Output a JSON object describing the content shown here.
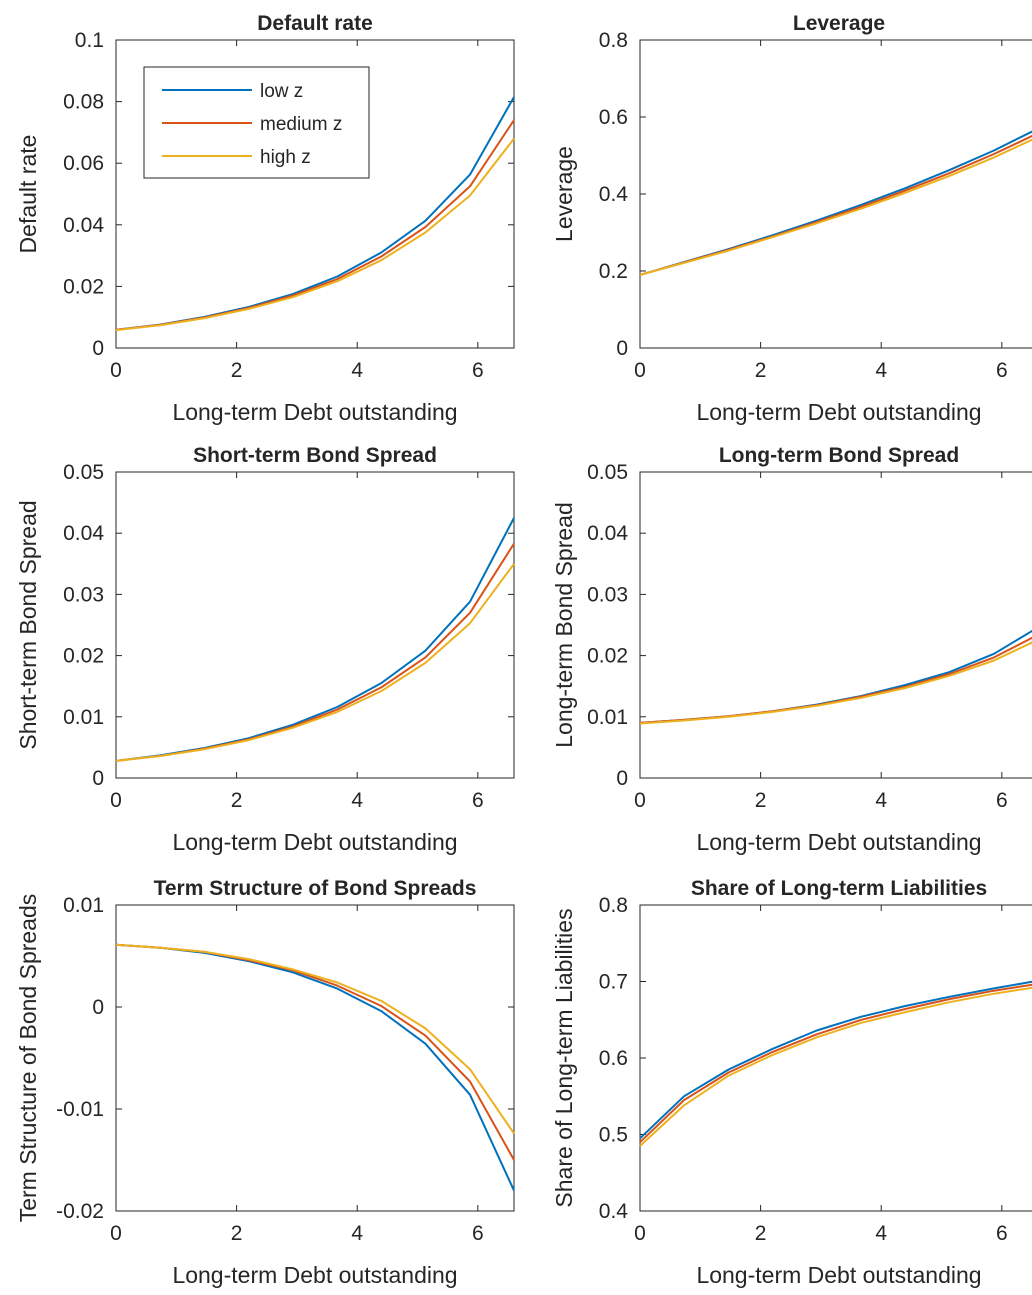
{
  "legend": {
    "entries": [
      {
        "label": "low z",
        "color": "#0072BD"
      },
      {
        "label": "medium z",
        "color": "#D95319"
      },
      {
        "label": "high z",
        "color": "#EDB120"
      }
    ],
    "placement": "upper-left of first panel"
  },
  "chart_data": [
    {
      "type": "line",
      "title": "Default rate",
      "xlabel": "Long-term Debt outstanding",
      "ylabel": "Default rate",
      "xlim": [
        0,
        6.6
      ],
      "ylim": [
        0,
        0.1
      ],
      "xticks": [
        "0",
        "2",
        "4",
        "6"
      ],
      "yticks": [
        "0",
        "0.02",
        "0.04",
        "0.06",
        "0.08",
        "0.1"
      ],
      "grid": false,
      "x": [
        0,
        0.73,
        1.47,
        2.2,
        2.93,
        3.67,
        4.4,
        5.13,
        5.87,
        6.6
      ],
      "series": [
        {
          "name": "low z",
          "values": [
            0.0059,
            0.0076,
            0.0101,
            0.0133,
            0.0175,
            0.0232,
            0.031,
            0.0413,
            0.0563,
            0.0815
          ]
        },
        {
          "name": "medium z",
          "values": [
            0.0059,
            0.0075,
            0.0099,
            0.013,
            0.017,
            0.0224,
            0.0297,
            0.0393,
            0.0525,
            0.074
          ]
        },
        {
          "name": "high z",
          "values": [
            0.0058,
            0.0074,
            0.0097,
            0.0127,
            0.0165,
            0.0217,
            0.0285,
            0.0375,
            0.0495,
            0.068
          ]
        }
      ]
    },
    {
      "type": "line",
      "title": "Leverage",
      "xlabel": "Long-term Debt outstanding",
      "ylabel": "Leverage",
      "xlim": [
        0,
        6.6
      ],
      "ylim": [
        0,
        0.8
      ],
      "xticks": [
        "0",
        "2",
        "4",
        "6"
      ],
      "yticks": [
        "0",
        "0.2",
        "0.4",
        "0.6",
        "0.8"
      ],
      "grid": false,
      "x": [
        0,
        0.73,
        1.47,
        2.2,
        2.93,
        3.67,
        4.4,
        5.13,
        5.87,
        6.6
      ],
      "series": [
        {
          "name": "low z",
          "values": [
            0.19,
            0.223,
            0.257,
            0.293,
            0.331,
            0.372,
            0.415,
            0.462,
            0.513,
            0.57
          ]
        },
        {
          "name": "medium z",
          "values": [
            0.19,
            0.222,
            0.255,
            0.29,
            0.327,
            0.367,
            0.409,
            0.454,
            0.504,
            0.558
          ]
        },
        {
          "name": "high z",
          "values": [
            0.19,
            0.221,
            0.253,
            0.288,
            0.324,
            0.362,
            0.403,
            0.447,
            0.495,
            0.548
          ]
        }
      ]
    },
    {
      "type": "line",
      "title": "Short-term Bond Spread",
      "xlabel": "Long-term Debt outstanding",
      "ylabel": "Short-term Bond Spread",
      "xlim": [
        0,
        6.6
      ],
      "ylim": [
        0,
        0.05
      ],
      "xticks": [
        "0",
        "2",
        "4",
        "6"
      ],
      "yticks": [
        "0",
        "0.01",
        "0.02",
        "0.03",
        "0.04",
        "0.05"
      ],
      "grid": false,
      "x": [
        0,
        0.73,
        1.47,
        2.2,
        2.93,
        3.67,
        4.4,
        5.13,
        5.87,
        6.6
      ],
      "series": [
        {
          "name": "low z",
          "values": [
            0.0028,
            0.0037,
            0.0049,
            0.0065,
            0.0087,
            0.0116,
            0.0155,
            0.0208,
            0.0288,
            0.0425
          ]
        },
        {
          "name": "medium z",
          "values": [
            0.0028,
            0.0036,
            0.0048,
            0.0063,
            0.0084,
            0.0112,
            0.0148,
            0.0197,
            0.027,
            0.0383
          ]
        },
        {
          "name": "high z",
          "values": [
            0.0028,
            0.0036,
            0.0047,
            0.0062,
            0.0082,
            0.0108,
            0.0142,
            0.0188,
            0.0253,
            0.035
          ]
        }
      ]
    },
    {
      "type": "line",
      "title": "Long-term Bond Spread",
      "xlabel": "Long-term Debt outstanding",
      "ylabel": "Long-term Bond Spread",
      "xlim": [
        0,
        6.6
      ],
      "ylim": [
        0,
        0.05
      ],
      "xticks": [
        "0",
        "2",
        "4",
        "6"
      ],
      "yticks": [
        "0",
        "0.01",
        "0.02",
        "0.03",
        "0.04",
        "0.05"
      ],
      "grid": false,
      "x": [
        0,
        0.73,
        1.47,
        2.2,
        2.93,
        3.67,
        4.4,
        5.13,
        5.87,
        6.6
      ],
      "series": [
        {
          "name": "low z",
          "values": [
            0.009,
            0.0095,
            0.0101,
            0.0109,
            0.012,
            0.0134,
            0.0152,
            0.0173,
            0.0203,
            0.0246
          ]
        },
        {
          "name": "medium z",
          "values": [
            0.009,
            0.0095,
            0.0101,
            0.0109,
            0.0119,
            0.0133,
            0.0149,
            0.017,
            0.0197,
            0.0234
          ]
        },
        {
          "name": "high z",
          "values": [
            0.0089,
            0.0094,
            0.01,
            0.0108,
            0.0118,
            0.0131,
            0.0147,
            0.0167,
            0.0192,
            0.0226
          ]
        }
      ]
    },
    {
      "type": "line",
      "title": "Term Structure of Bond Spreads",
      "xlabel": "Long-term Debt outstanding",
      "ylabel": "Term Structure of Bond Spreads",
      "xlim": [
        0,
        6.6
      ],
      "ylim": [
        -0.02,
        0.01
      ],
      "xticks": [
        "0",
        "2",
        "4",
        "6"
      ],
      "yticks": [
        "-0.02",
        "-0.01",
        "0",
        "0.01"
      ],
      "grid": false,
      "x": [
        0,
        0.73,
        1.47,
        2.2,
        2.93,
        3.67,
        4.4,
        5.13,
        5.87,
        6.6
      ],
      "series": [
        {
          "name": "low z",
          "values": [
            0.0061,
            0.0058,
            0.0053,
            0.0045,
            0.0034,
            0.0018,
            -0.0004,
            -0.0036,
            -0.0086,
            -0.018
          ]
        },
        {
          "name": "medium z",
          "values": [
            0.0061,
            0.0058,
            0.0054,
            0.0046,
            0.0036,
            0.0021,
            0.0001,
            -0.0028,
            -0.0073,
            -0.015
          ]
        },
        {
          "name": "high z",
          "values": [
            0.0061,
            0.0058,
            0.0054,
            0.0047,
            0.0037,
            0.0024,
            0.0006,
            -0.0021,
            -0.0061,
            -0.0124
          ]
        }
      ]
    },
    {
      "type": "line",
      "title": "Share of Long-term Liabilities",
      "xlabel": "Long-term Debt outstanding",
      "ylabel": "Share of Long-term Liabilities",
      "xlim": [
        0,
        6.6
      ],
      "ylim": [
        0.4,
        0.8
      ],
      "xticks": [
        "0",
        "2",
        "4",
        "6"
      ],
      "yticks": [
        "0.4",
        "0.5",
        "0.6",
        "0.7",
        "0.8"
      ],
      "grid": false,
      "x": [
        0,
        0.73,
        1.47,
        2.2,
        2.93,
        3.67,
        4.4,
        5.13,
        5.87,
        6.6
      ],
      "series": [
        {
          "name": "low z",
          "values": [
            0.495,
            0.55,
            0.585,
            0.612,
            0.636,
            0.654,
            0.668,
            0.68,
            0.691,
            0.701
          ]
        },
        {
          "name": "medium z",
          "values": [
            0.49,
            0.545,
            0.581,
            0.608,
            0.631,
            0.65,
            0.664,
            0.677,
            0.688,
            0.697
          ]
        },
        {
          "name": "high z",
          "values": [
            0.485,
            0.538,
            0.577,
            0.604,
            0.627,
            0.646,
            0.66,
            0.673,
            0.684,
            0.693
          ]
        }
      ]
    }
  ]
}
